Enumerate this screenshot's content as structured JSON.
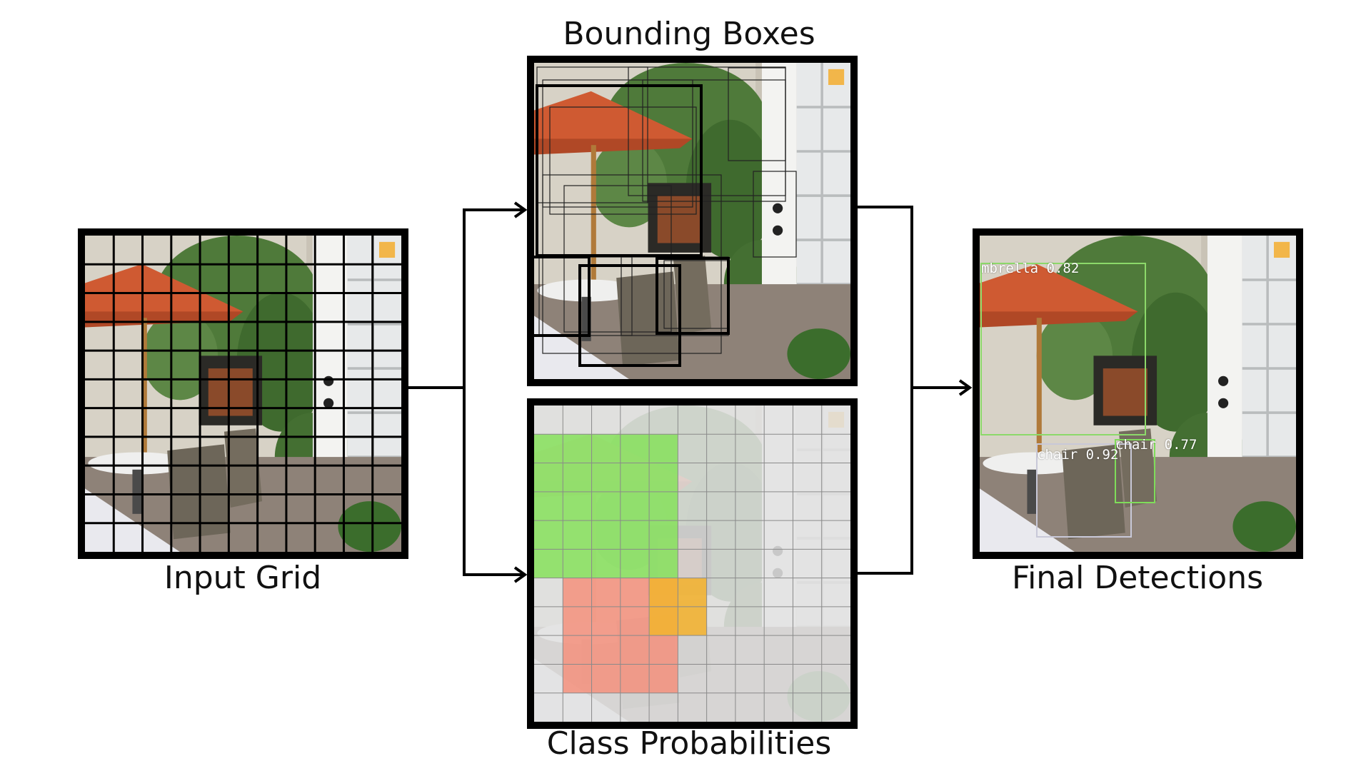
{
  "panels": {
    "input_grid": {
      "title": "Input Grid"
    },
    "bounding_boxes": {
      "title": "Bounding Boxes"
    },
    "class_probabilities": {
      "title": "Class Probabilities",
      "colors": {
        "green": "#86e05c",
        "red": "#f4907c",
        "orange": "#f2b233",
        "gray": "#dcdcdc"
      }
    },
    "final_detections": {
      "title": "Final Detections",
      "detections": [
        {
          "label": "mbrella 0.82",
          "color": "#8cd96a"
        },
        {
          "label": "chair 0.92",
          "color": "#c8c8d8"
        },
        {
          "label": "chair 0.77",
          "color": "#7fdc5a"
        }
      ]
    }
  }
}
